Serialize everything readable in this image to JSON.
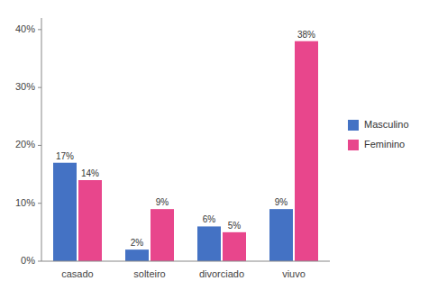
{
  "chart_data": {
    "type": "bar",
    "categories": [
      "casado",
      "solteiro",
      "divorciado",
      "viuvo"
    ],
    "series": [
      {
        "name": "Masculino",
        "color": "#4472C4",
        "values": [
          17,
          2,
          6,
          9
        ],
        "value_labels": [
          "17%",
          "2%",
          "6%",
          "9%"
        ]
      },
      {
        "name": "Feminino",
        "color": "#E8468C",
        "values": [
          14,
          9,
          5,
          38
        ],
        "value_labels": [
          "14%",
          "9%",
          "5%",
          "38%"
        ]
      }
    ],
    "ylim": [
      0,
      42
    ],
    "yticks": [
      {
        "value": 0,
        "label": "0%"
      },
      {
        "value": 10,
        "label": "10%"
      },
      {
        "value": 20,
        "label": "20%"
      },
      {
        "value": 30,
        "label": "30%"
      },
      {
        "value": 40,
        "label": "40%"
      }
    ],
    "grid": false,
    "legend": "right",
    "data_labels": true
  }
}
